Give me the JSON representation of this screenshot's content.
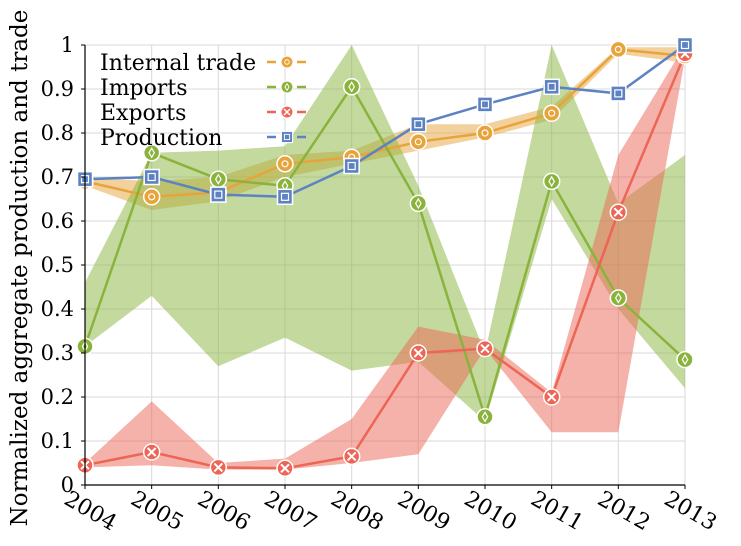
{
  "chart_data": {
    "type": "line",
    "ylabel": "Normalized aggregate production and trade",
    "xlabel": "",
    "x": [
      2004,
      2005,
      2006,
      2007,
      2008,
      2009,
      2010,
      2011,
      2012,
      2013
    ],
    "x_tick_labels": [
      "2004",
      "2005",
      "2006",
      "2007",
      "2008",
      "2009",
      "2010",
      "2011",
      "2012",
      "2013"
    ],
    "y_tick_labels": [
      "0",
      "0.1",
      "0.2",
      "0.3",
      "0.4",
      "0.5",
      "0.6",
      "0.7",
      "0.8",
      "0.9",
      "1"
    ],
    "ylim": [
      0,
      1
    ],
    "xlim": [
      2004,
      2013
    ],
    "grid": true,
    "legend_position": "top-left",
    "series": [
      {
        "name": "Internal trade",
        "color": "#e8a33a",
        "marker": "circle",
        "values": [
          0.69,
          0.655,
          0.665,
          0.73,
          0.745,
          0.78,
          0.8,
          0.845,
          0.99,
          0.975
        ],
        "band_upper": [
          0.7,
          0.69,
          0.7,
          0.75,
          0.76,
          0.82,
          0.82,
          0.86,
          0.995,
          0.995
        ],
        "band_lower": [
          0.68,
          0.625,
          0.645,
          0.7,
          0.73,
          0.76,
          0.79,
          0.83,
          0.98,
          0.96
        ]
      },
      {
        "name": "Imports",
        "color": "#8ab33c",
        "marker": "diamond",
        "values": [
          0.315,
          0.755,
          0.695,
          0.68,
          0.905,
          0.64,
          0.155,
          0.69,
          0.425,
          0.285
        ],
        "band_upper": [
          0.46,
          0.755,
          0.76,
          0.77,
          1.0,
          0.68,
          0.3,
          1.0,
          0.64,
          0.75
        ],
        "band_lower": [
          0.315,
          0.43,
          0.27,
          0.335,
          0.26,
          0.28,
          0.145,
          0.65,
          0.4,
          0.22
        ]
      },
      {
        "name": "Exports",
        "color": "#ec6555",
        "marker": "cross",
        "values": [
          0.045,
          0.075,
          0.04,
          0.038,
          0.065,
          0.3,
          0.31,
          0.2,
          0.62,
          0.98
        ],
        "band_upper": [
          0.05,
          0.19,
          0.05,
          0.06,
          0.15,
          0.36,
          0.33,
          0.21,
          0.75,
          1.0
        ],
        "band_lower": [
          0.04,
          0.045,
          0.035,
          0.035,
          0.05,
          0.07,
          0.31,
          0.12,
          0.12,
          0.97
        ]
      },
      {
        "name": "Production",
        "color": "#5d82c2",
        "marker": "square",
        "values": [
          0.695,
          0.7,
          0.66,
          0.655,
          0.725,
          0.82,
          0.865,
          0.905,
          0.89,
          1.0
        ]
      }
    ]
  }
}
